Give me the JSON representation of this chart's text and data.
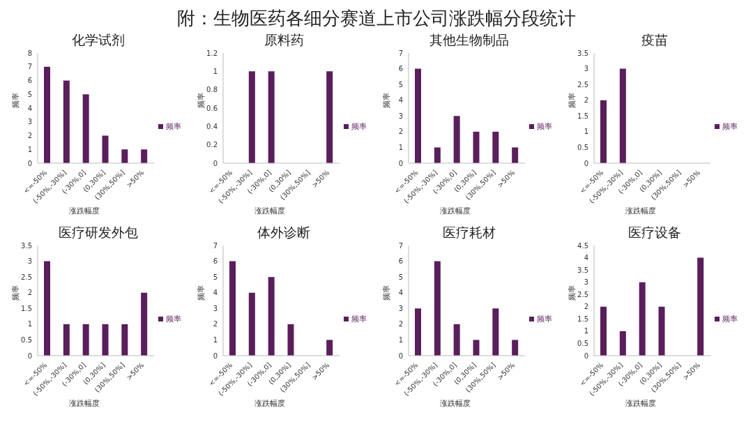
{
  "chart_data": [
    {
      "type": "other",
      "title": "附：生物医药各细分赛道上市公司涨跌幅分段统计"
    },
    {
      "type": "bar",
      "title": "化学试剂",
      "xlabel": "涨跌幅度",
      "ylabel": "频率",
      "categories": [
        "<=-50%",
        "(-50%,-30%]",
        "(-30%,0]",
        "(0,30%]",
        "(30%,50%]",
        ">50%"
      ],
      "series": [
        {
          "name": "频率",
          "color": "#5a1e5c",
          "values": [
            7,
            6,
            5,
            2,
            1,
            1
          ]
        }
      ],
      "ylim": [
        0,
        8
      ],
      "yticks": [
        0,
        1,
        2,
        3,
        4,
        5,
        6,
        7,
        8
      ],
      "legend": "right"
    },
    {
      "type": "bar",
      "title": "原料药",
      "xlabel": "涨跌幅度",
      "ylabel": "频率",
      "categories": [
        "<=-50%",
        "(-50%,-30%]",
        "(-30%,0]",
        "(0,30%]",
        "(30%,50%]",
        ">50%"
      ],
      "series": [
        {
          "name": "频率",
          "color": "#5a1e5c",
          "values": [
            0,
            1,
            1,
            0,
            0,
            1
          ]
        }
      ],
      "ylim": [
        0,
        1.2
      ],
      "yticks": [
        0,
        0.2,
        0.4,
        0.6,
        0.8,
        1,
        1.2
      ],
      "legend": "right"
    },
    {
      "type": "bar",
      "title": "其他生物制品",
      "xlabel": "涨跌幅度",
      "ylabel": "频率",
      "categories": [
        "<=-50%",
        "(-50%,-30%]",
        "(-30%,0]",
        "(0,30%]",
        "(30%,50%]",
        ">50%"
      ],
      "series": [
        {
          "name": "频率",
          "color": "#5a1e5c",
          "values": [
            6,
            1,
            3,
            2,
            2,
            1
          ]
        }
      ],
      "ylim": [
        0,
        7
      ],
      "yticks": [
        0,
        1,
        2,
        3,
        4,
        5,
        6,
        7
      ],
      "legend": "right"
    },
    {
      "type": "bar",
      "title": "疫苗",
      "xlabel": "涨跌幅度",
      "ylabel": "频率",
      "categories": [
        "<=-50%",
        "(-50%,-30%]",
        "(-30%,0]",
        "(0,30%]",
        "(30%,50%]",
        ">50%"
      ],
      "series": [
        {
          "name": "频率",
          "color": "#5a1e5c",
          "values": [
            2,
            3,
            0,
            0,
            0,
            0
          ]
        }
      ],
      "ylim": [
        0,
        3.5
      ],
      "yticks": [
        0,
        0.5,
        1,
        1.5,
        2,
        2.5,
        3,
        3.5
      ],
      "legend": "right"
    },
    {
      "type": "bar",
      "title": "医疗研发外包",
      "xlabel": "涨跌幅度",
      "ylabel": "频率",
      "categories": [
        "<=-50%",
        "(-50%,-30%]",
        "(-30%,0]",
        "(0,30%]",
        "(30%,50%]",
        ">50%"
      ],
      "series": [
        {
          "name": "频率",
          "color": "#5a1e5c",
          "values": [
            3,
            1,
            1,
            1,
            1,
            2
          ]
        }
      ],
      "ylim": [
        0,
        3.5
      ],
      "yticks": [
        0,
        0.5,
        1,
        1.5,
        2,
        2.5,
        3,
        3.5
      ],
      "legend": "right"
    },
    {
      "type": "bar",
      "title": "体外诊断",
      "xlabel": "涨跌幅度",
      "ylabel": "频率",
      "categories": [
        "<=-50%",
        "(-50%,-30%]",
        "(-30%,0]",
        "(0,30%]",
        "(30%,50%]",
        ">50%"
      ],
      "series": [
        {
          "name": "频率",
          "color": "#5a1e5c",
          "values": [
            6,
            4,
            5,
            2,
            0,
            1
          ]
        }
      ],
      "ylim": [
        0,
        7
      ],
      "yticks": [
        0,
        1,
        2,
        3,
        4,
        5,
        6,
        7
      ],
      "legend": "right"
    },
    {
      "type": "bar",
      "title": "医疗耗材",
      "xlabel": "涨跌幅度",
      "ylabel": "频率",
      "categories": [
        "<=-50%",
        "(-50%,-30%]",
        "(-30%,0]",
        "(0,30%]",
        "(30%,50%]",
        ">50%"
      ],
      "series": [
        {
          "name": "频率",
          "color": "#5a1e5c",
          "values": [
            3,
            6,
            2,
            1,
            3,
            1
          ]
        }
      ],
      "ylim": [
        0,
        7
      ],
      "yticks": [
        0,
        1,
        2,
        3,
        4,
        5,
        6,
        7
      ],
      "legend": "right"
    },
    {
      "type": "bar",
      "title": "医疗设备",
      "xlabel": "涨跌幅度",
      "ylabel": "频率",
      "categories": [
        "<=-50%",
        "(-50%,-30%]",
        "(-30%,0]",
        "(0,30%]",
        "(30%,50%]",
        ">50%"
      ],
      "series": [
        {
          "name": "频率",
          "color": "#5a1e5c",
          "values": [
            2,
            1,
            3,
            2,
            0,
            4
          ]
        }
      ],
      "ylim": [
        0,
        4.5
      ],
      "yticks": [
        0,
        0.5,
        1,
        1.5,
        2,
        2.5,
        3,
        3.5,
        4,
        4.5
      ],
      "legend": "right"
    }
  ]
}
